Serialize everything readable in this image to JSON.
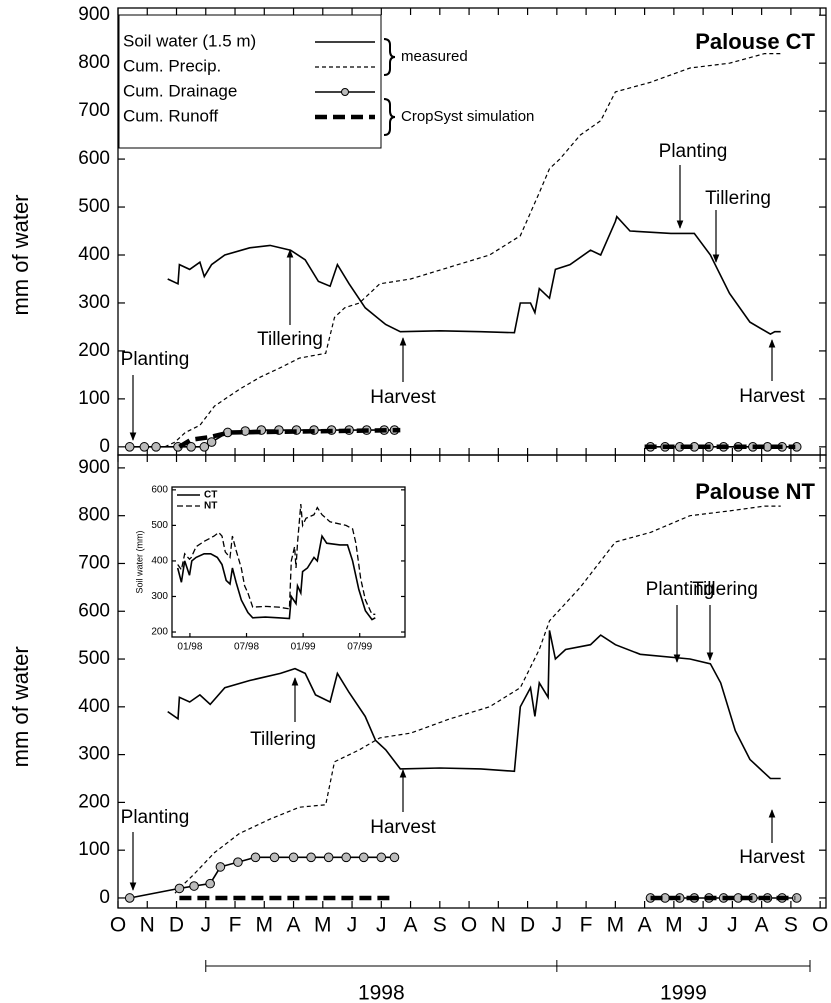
{
  "chart_data": [
    {
      "type": "line",
      "title": "Palouse CT",
      "ylabel": "mm of water",
      "xlim": [
        0,
        24.2
      ],
      "ylim": [
        -17,
        915
      ],
      "xticks": [
        0,
        1,
        2,
        3,
        4,
        5,
        6,
        7,
        8,
        9,
        10,
        11,
        12,
        13,
        14,
        15,
        16,
        17,
        18,
        19,
        20,
        21,
        22,
        23,
        24
      ],
      "yticks": [
        0,
        100,
        200,
        300,
        400,
        500,
        600,
        700,
        800,
        900
      ],
      "legend": "upper left",
      "legend_groups": [
        "measured",
        "CropSyst simulation"
      ],
      "series": [
        {
          "name": "Soil water (1.5 m)",
          "color": "#000000",
          "style": "solid",
          "x": [
            1.7,
            2.05,
            2.1,
            2.45,
            2.8,
            2.95,
            3.2,
            3.65,
            4.5,
            5.2,
            5.9,
            6.4,
            6.85,
            7.25,
            7.5,
            7.9,
            8.45,
            9.15,
            9.65,
            11,
            12.4,
            13.55,
            13.75,
            14.1,
            14.25,
            14.4,
            14.75,
            14.95,
            15.45,
            16.15,
            16.5,
            17,
            17.05,
            17.5,
            18.9,
            19.7,
            20.25,
            20.9,
            21.6,
            22.3,
            22.45,
            22.65
          ],
          "values": [
            350,
            340,
            380,
            370,
            385,
            355,
            380,
            400,
            415,
            420,
            410,
            390,
            345,
            335,
            380,
            340,
            290,
            255,
            240,
            242,
            240,
            238,
            300,
            300,
            280,
            330,
            310,
            370,
            380,
            410,
            400,
            470,
            480,
            450,
            445,
            445,
            400,
            320,
            260,
            235,
            240,
            240
          ]
        },
        {
          "name": "Cum. Precip.",
          "color": "#000000",
          "style": "dashed",
          "x": [
            1.6,
            1.95,
            2.3,
            2.8,
            3.3,
            4.15,
            4.85,
            5.55,
            6.2,
            7.1,
            7.4,
            7.75,
            8.25,
            8.95,
            10,
            11.35,
            12.7,
            13.75,
            14.4,
            14.75,
            15.1,
            15.8,
            16.5,
            17,
            18.2,
            19.55,
            20.9,
            22.1,
            22.65
          ],
          "values": [
            0,
            10,
            30,
            45,
            85,
            120,
            145,
            165,
            185,
            195,
            270,
            290,
            300,
            340,
            350,
            375,
            400,
            440,
            530,
            580,
            600,
            650,
            680,
            740,
            760,
            790,
            800,
            820,
            820
          ]
        },
        {
          "name": "Cum. Drainage",
          "color": "#000000",
          "style": "marker",
          "x": [
            0.4,
            0.9,
            1.3,
            2.05,
            2.5,
            2.95,
            3.2,
            3.75,
            4.35,
            4.9,
            5.5,
            6.1,
            6.7,
            7.3,
            7.9,
            8.5,
            9.1,
            9.45,
            null,
            18.2,
            18.7,
            19.2,
            19.7,
            20.2,
            20.7,
            21.2,
            21.7,
            22.2,
            22.7,
            23.2
          ],
          "values": [
            0,
            0,
            0,
            0,
            0,
            0,
            10,
            30,
            33,
            35,
            35,
            35,
            35,
            35,
            35,
            35,
            35,
            35,
            null,
            0,
            0,
            0,
            0,
            0,
            0,
            0,
            0,
            0,
            0,
            0
          ]
        },
        {
          "name": "Cum. Runoff",
          "color": "#000000",
          "style": "thick-dashed",
          "x": [
            2.1,
            2.5,
            3.1,
            3.8,
            9.65,
            null,
            18,
            23.15
          ],
          "values": [
            0,
            15,
            20,
            30,
            35,
            null,
            0,
            0
          ]
        }
      ],
      "annotations": [
        "Planting",
        "Tillering",
        "Harvest",
        "Planting",
        "Tillering",
        "Harvest"
      ]
    },
    {
      "type": "line",
      "title": "Palouse NT",
      "ylabel": "mm of water",
      "xlim": [
        0,
        24.2
      ],
      "ylim": [
        -21,
        927
      ],
      "xticks": [
        {
          "value": 0,
          "label": "O"
        },
        {
          "value": 1,
          "label": "N"
        },
        {
          "value": 2,
          "label": "D"
        },
        {
          "value": 3,
          "label": "J"
        },
        {
          "value": 4,
          "label": "F"
        },
        {
          "value": 5,
          "label": "M"
        },
        {
          "value": 6,
          "label": "A"
        },
        {
          "value": 7,
          "label": "M"
        },
        {
          "value": 8,
          "label": "J"
        },
        {
          "value": 9,
          "label": "J"
        },
        {
          "value": 10,
          "label": "A"
        },
        {
          "value": 11,
          "label": "S"
        },
        {
          "value": 12,
          "label": "O"
        },
        {
          "value": 13,
          "label": "N"
        },
        {
          "value": 14,
          "label": "D"
        },
        {
          "value": 15,
          "label": "J"
        },
        {
          "value": 16,
          "label": "F"
        },
        {
          "value": 17,
          "label": "M"
        },
        {
          "value": 18,
          "label": "A"
        },
        {
          "value": 19,
          "label": "M"
        },
        {
          "value": 20,
          "label": "J"
        },
        {
          "value": 21,
          "label": "J"
        },
        {
          "value": 22,
          "label": "A"
        },
        {
          "value": 23,
          "label": "S"
        },
        {
          "value": 24,
          "label": "O"
        }
      ],
      "yticks": [
        0,
        100,
        200,
        300,
        400,
        500,
        600,
        700,
        800,
        900
      ],
      "years": [
        "1998",
        "1999"
      ],
      "series": [
        {
          "name": "Soil water (1.5 m)",
          "color": "#000000",
          "style": "solid",
          "x": [
            1.7,
            2.05,
            2.1,
            2.45,
            2.8,
            3.15,
            3.65,
            4.5,
            5.55,
            6.05,
            6.4,
            6.75,
            7.25,
            7.5,
            7.9,
            8.45,
            8.8,
            9.15,
            9.65,
            11,
            12.4,
            13.55,
            13.75,
            14.1,
            14.25,
            14.4,
            14.7,
            14.75,
            14.95,
            15.3,
            16.15,
            16.5,
            17,
            17.85,
            19.55,
            20.25,
            20.6,
            21.1,
            21.6,
            22.3,
            22.65
          ],
          "values": [
            390,
            375,
            420,
            410,
            425,
            405,
            440,
            455,
            470,
            480,
            470,
            425,
            410,
            470,
            430,
            380,
            330,
            310,
            270,
            272,
            270,
            265,
            400,
            440,
            380,
            450,
            420,
            560,
            500,
            520,
            530,
            550,
            530,
            510,
            500,
            490,
            450,
            350,
            290,
            250,
            250
          ]
        },
        {
          "name": "Cum. Precip.",
          "color": "#000000",
          "style": "dashed",
          "x": [
            1.95,
            2.1,
            2.6,
            3.3,
            4.15,
            5.2,
            6.2,
            7.1,
            7.4,
            8.25,
            8.95,
            10,
            11.35,
            12.7,
            13.75,
            14.4,
            14.75,
            15.8,
            17,
            18.2,
            19.55,
            20.9,
            22.1,
            22.65
          ],
          "values": [
            10,
            20,
            50,
            95,
            135,
            165,
            190,
            195,
            285,
            310,
            335,
            345,
            375,
            400,
            440,
            520,
            580,
            650,
            745,
            765,
            800,
            810,
            820,
            820
          ]
        },
        {
          "name": "Cum. Drainage",
          "color": "#000000",
          "style": "marker",
          "x": [
            0.4,
            2.1,
            2.6,
            3.15,
            3.5,
            4.1,
            4.7,
            5.35,
            6,
            6.6,
            7.2,
            7.8,
            8.4,
            9,
            9.45,
            null,
            18.2,
            18.7,
            19.2,
            19.7,
            20.2,
            20.7,
            21.2,
            21.7,
            22.2,
            22.7,
            23.2
          ],
          "values": [
            0,
            20,
            25,
            30,
            65,
            75,
            85,
            85,
            85,
            85,
            85,
            85,
            85,
            85,
            85,
            null,
            0,
            0,
            0,
            0,
            0,
            0,
            0,
            0,
            0,
            0,
            0
          ]
        },
        {
          "name": "Cum. Runoff",
          "color": "#000000",
          "style": "thick-dashed",
          "x": [
            2.1,
            9.45,
            null,
            18.2,
            23.15
          ],
          "values": [
            0,
            0,
            null,
            0,
            0
          ]
        }
      ],
      "annotations": [
        "Planting",
        "Tillering",
        "Harvest",
        "Planting",
        "Tillering",
        "Harvest"
      ]
    },
    {
      "type": "line",
      "ylabel": "Soil water (mm)",
      "xlim": [
        1.1,
        25.8
      ],
      "ylim": [
        186,
        608
      ],
      "xticks": [
        {
          "value": 3,
          "label": "01/98"
        },
        {
          "value": 9,
          "label": "07/98"
        },
        {
          "value": 15,
          "label": "01/99"
        },
        {
          "value": 21,
          "label": "07/99"
        }
      ],
      "yticks": [
        200,
        300,
        400,
        500,
        600
      ],
      "series": [
        {
          "name": "CT",
          "color": "#000000",
          "style": "solid",
          "x": [
            1.7,
            2.1,
            2.45,
            2.95,
            3.2,
            3.65,
            4.5,
            5.2,
            5.9,
            6.4,
            6.85,
            7.25,
            7.5,
            7.9,
            8.45,
            9.15,
            9.65,
            11,
            12.4,
            13.55,
            13.75,
            14.25,
            14.4,
            14.75,
            14.95,
            15.45,
            16.15,
            16.5,
            17,
            17.5,
            18.9,
            19.7,
            20.25,
            20.9,
            21.6,
            22.3,
            22.65
          ],
          "values": [
            380,
            340,
            400,
            360,
            400,
            410,
            420,
            420,
            410,
            390,
            345,
            335,
            380,
            340,
            290,
            255,
            240,
            242,
            240,
            238,
            300,
            280,
            330,
            310,
            370,
            380,
            410,
            400,
            470,
            450,
            445,
            445,
            400,
            320,
            260,
            235,
            240
          ]
        },
        {
          "name": "NT",
          "color": "#000000",
          "style": "dashed",
          "x": [
            1.7,
            2.1,
            2.45,
            2.95,
            3.15,
            3.65,
            4.5,
            5.55,
            6.05,
            6.4,
            6.75,
            7.25,
            7.5,
            7.9,
            8.45,
            8.8,
            9.15,
            9.65,
            11,
            12.4,
            13.55,
            13.75,
            14.1,
            14.25,
            14.4,
            14.75,
            14.95,
            15.3,
            16.15,
            16.5,
            17,
            17.85,
            19.55,
            20.25,
            20.6,
            21.1,
            21.6,
            22.3,
            22.65
          ],
          "values": [
            390,
            375,
            420,
            405,
            410,
            440,
            455,
            470,
            480,
            470,
            425,
            410,
            470,
            430,
            380,
            330,
            310,
            270,
            272,
            270,
            265,
            400,
            440,
            380,
            450,
            560,
            500,
            520,
            530,
            550,
            530,
            510,
            500,
            490,
            450,
            350,
            290,
            250,
            250
          ]
        }
      ]
    }
  ]
}
